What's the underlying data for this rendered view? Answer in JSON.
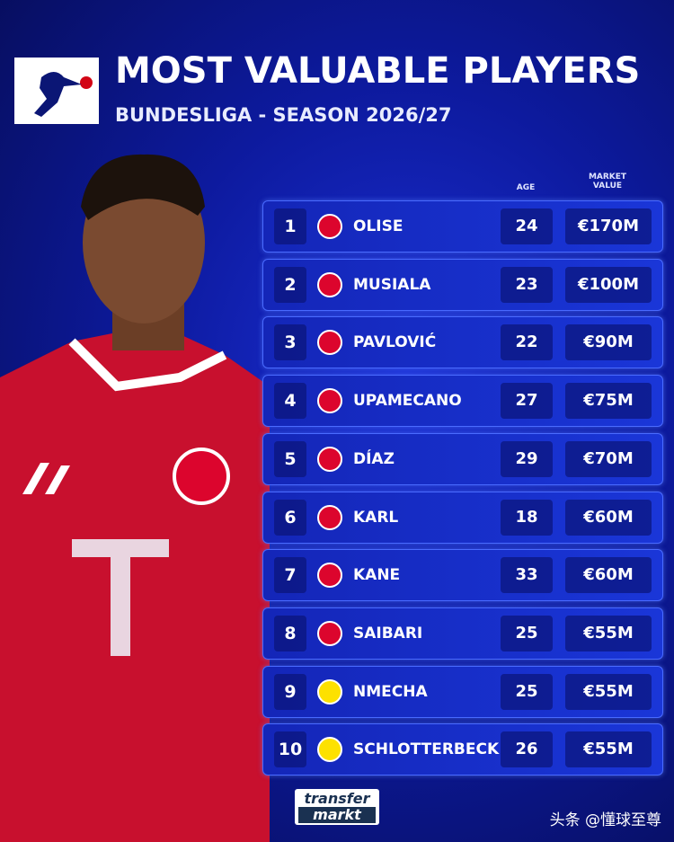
{
  "header": {
    "title": "MOST VALUABLE PLAYERS",
    "subtitle": "BUNDESLIGA - SEASON 2026/27"
  },
  "table": {
    "columns": {
      "age": "AGE",
      "value": "MARKET VALUE"
    },
    "rows": [
      {
        "rank": "1",
        "name": "OLISE",
        "age": "24",
        "value": "€170M",
        "badge_color": "#dc052d"
      },
      {
        "rank": "2",
        "name": "MUSIALA",
        "age": "23",
        "value": "€100M",
        "badge_color": "#dc052d"
      },
      {
        "rank": "3",
        "name": "PAVLOVIĆ",
        "age": "22",
        "value": "€90M",
        "badge_color": "#dc052d"
      },
      {
        "rank": "4",
        "name": "UPAMECANO",
        "age": "27",
        "value": "€75M",
        "badge_color": "#dc052d"
      },
      {
        "rank": "5",
        "name": "DÍAZ",
        "age": "29",
        "value": "€70M",
        "badge_color": "#dc052d"
      },
      {
        "rank": "6",
        "name": "KARL",
        "age": "18",
        "value": "€60M",
        "badge_color": "#dc052d"
      },
      {
        "rank": "7",
        "name": "KANE",
        "age": "33",
        "value": "€60M",
        "badge_color": "#dc052d"
      },
      {
        "rank": "8",
        "name": "SAIBARI",
        "age": "25",
        "value": "€55M",
        "badge_color": "#dc052d"
      },
      {
        "rank": "9",
        "name": "NMECHA",
        "age": "25",
        "value": "€55M",
        "badge_color": "#fde100"
      },
      {
        "rank": "10",
        "name": "SCHLOTTERBECK",
        "age": "26",
        "value": "€55M",
        "badge_color": "#fde100"
      }
    ]
  },
  "footer": {
    "logo_top": "transfer",
    "logo_bottom": "markt",
    "watermark": "头条 @懂球至尊"
  }
}
